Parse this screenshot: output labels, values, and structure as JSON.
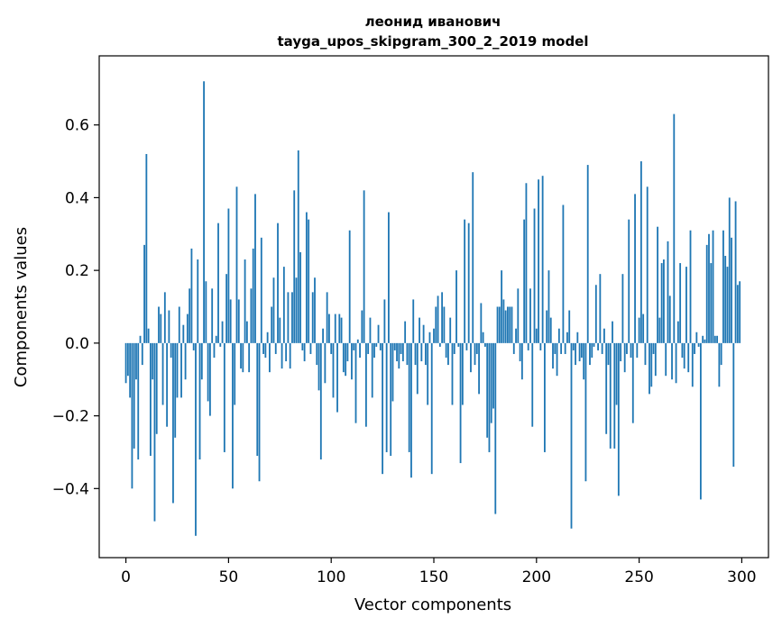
{
  "chart_data": {
    "type": "bar",
    "title": "леонид иванович",
    "subtitle": "tayga_upos_skipgram_300_2_2019 model",
    "xlabel": "Vector components",
    "ylabel": "Components values",
    "xlim": [
      -13,
      313
    ],
    "ylim": [
      -0.59,
      0.79
    ],
    "x_ticks": [
      0,
      50,
      100,
      150,
      200,
      250,
      300
    ],
    "y_ticks": [
      -0.4,
      -0.2,
      0.0,
      0.2,
      0.4,
      0.6
    ],
    "y_tick_labels": [
      "−0.4",
      "−0.2",
      "0.0",
      "0.2",
      "0.4",
      "0.6"
    ],
    "grid": false,
    "bar_color": "#1f77b4",
    "values": [
      -0.11,
      -0.09,
      -0.15,
      -0.4,
      -0.29,
      -0.1,
      -0.32,
      0.02,
      -0.06,
      0.27,
      0.52,
      0.04,
      -0.31,
      -0.1,
      -0.49,
      -0.25,
      0.1,
      0.08,
      -0.17,
      0.14,
      -0.23,
      0.09,
      -0.04,
      -0.44,
      -0.26,
      -0.15,
      0.1,
      -0.15,
      0.05,
      -0.1,
      0.08,
      0.15,
      0.26,
      -0.02,
      -0.53,
      0.23,
      -0.32,
      -0.1,
      0.72,
      0.17,
      -0.16,
      -0.2,
      0.15,
      -0.04,
      0.02,
      0.33,
      -0.01,
      0.06,
      -0.3,
      0.19,
      0.37,
      0.12,
      -0.4,
      -0.17,
      0.43,
      0.12,
      -0.07,
      -0.08,
      0.23,
      0.06,
      -0.08,
      0.15,
      0.26,
      0.41,
      -0.31,
      -0.38,
      0.29,
      -0.03,
      -0.04,
      0.03,
      -0.08,
      0.1,
      0.18,
      -0.03,
      0.33,
      0.07,
      -0.07,
      0.21,
      -0.05,
      0.14,
      -0.07,
      0.14,
      0.42,
      0.18,
      0.53,
      0.25,
      -0.02,
      -0.05,
      0.36,
      0.34,
      -0.03,
      0.14,
      0.18,
      -0.06,
      -0.13,
      -0.32,
      0.04,
      -0.11,
      0.14,
      0.08,
      -0.03,
      -0.15,
      0.08,
      -0.19,
      0.08,
      0.07,
      -0.08,
      -0.09,
      -0.05,
      0.31,
      -0.1,
      -0.02,
      -0.22,
      0.01,
      -0.04,
      0.09,
      0.42,
      -0.23,
      -0.03,
      0.07,
      -0.15,
      -0.04,
      -0.01,
      0.05,
      -0.02,
      -0.36,
      0.12,
      -0.3,
      0.36,
      -0.31,
      -0.16,
      -0.02,
      -0.05,
      -0.07,
      -0.03,
      -0.05,
      0.06,
      -0.06,
      -0.3,
      -0.37,
      0.12,
      -0.06,
      -0.14,
      0.07,
      -0.05,
      0.05,
      -0.06,
      -0.17,
      0.03,
      -0.36,
      0.04,
      0.1,
      0.13,
      -0.01,
      0.14,
      0.1,
      -0.04,
      -0.06,
      0.07,
      -0.17,
      -0.03,
      0.2,
      -0.01,
      -0.33,
      -0.17,
      0.34,
      -0.02,
      0.33,
      -0.08,
      0.47,
      -0.06,
      -0.03,
      -0.14,
      0.11,
      0.03,
      -0.01,
      -0.26,
      -0.3,
      -0.22,
      -0.18,
      -0.47,
      0.1,
      0.1,
      0.2,
      0.12,
      0.09,
      0.1,
      0.1,
      0.1,
      -0.03,
      0.04,
      0.15,
      -0.05,
      -0.1,
      0.34,
      0.44,
      -0.02,
      0.15,
      -0.23,
      0.37,
      0.04,
      0.45,
      -0.02,
      0.46,
      -0.3,
      0.09,
      0.2,
      0.07,
      -0.07,
      -0.03,
      -0.09,
      0.04,
      -0.03,
      0.38,
      -0.03,
      0.03,
      0.09,
      -0.51,
      -0.02,
      -0.06,
      0.03,
      -0.05,
      -0.04,
      -0.1,
      -0.38,
      0.49,
      -0.06,
      -0.04,
      -0.01,
      0.16,
      -0.02,
      0.19,
      -0.03,
      0.04,
      -0.25,
      -0.06,
      -0.29,
      0.06,
      -0.29,
      -0.17,
      -0.42,
      -0.05,
      0.19,
      -0.08,
      -0.03,
      0.34,
      -0.04,
      -0.22,
      0.41,
      -0.04,
      0.07,
      0.5,
      0.08,
      -0.06,
      0.43,
      -0.14,
      -0.12,
      -0.03,
      -0.09,
      0.32,
      0.07,
      0.22,
      0.23,
      -0.09,
      0.28,
      0.13,
      -0.1,
      0.63,
      -0.11,
      0.06,
      0.22,
      -0.04,
      -0.07,
      0.21,
      -0.08,
      0.31,
      -0.12,
      -0.03,
      0.03,
      -0.01,
      -0.43,
      0.02,
      0.01,
      0.27,
      0.3,
      0.22,
      0.31,
      0.02,
      0.02,
      -0.12,
      -0.06,
      0.31,
      0.24,
      0.21,
      0.4,
      0.29,
      -0.34,
      0.39,
      0.16,
      0.17
    ]
  }
}
